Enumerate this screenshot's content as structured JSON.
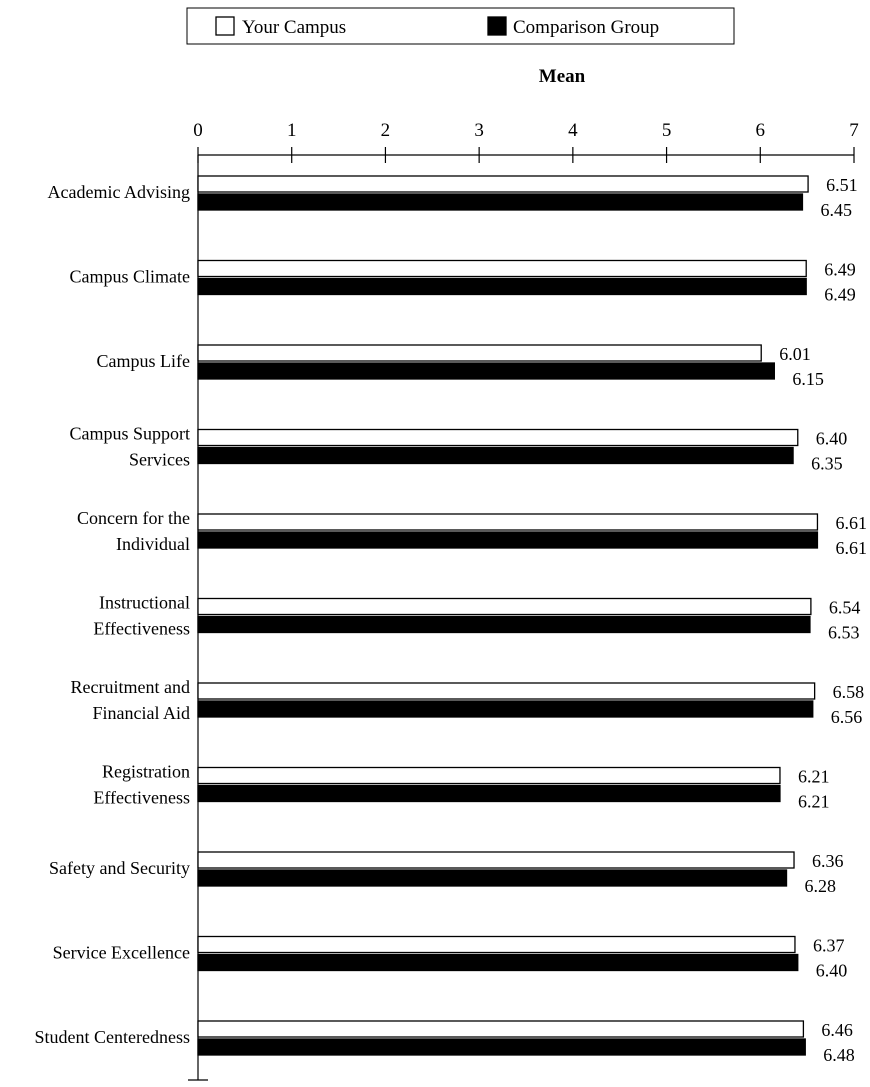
{
  "chart_data": {
    "type": "bar",
    "orientation": "horizontal",
    "title": "",
    "xlabel": "Mean",
    "ylabel": "",
    "xlim": [
      0,
      7
    ],
    "x_ticks": [
      0,
      1,
      2,
      3,
      4,
      5,
      6,
      7
    ],
    "grid": false,
    "legend_placement": "top",
    "categories": [
      [
        "Academic Advising"
      ],
      [
        "Campus Climate"
      ],
      [
        "Campus Life"
      ],
      [
        "Campus Support",
        "Services"
      ],
      [
        "Concern for the",
        "Individual"
      ],
      [
        "Instructional",
        "Effectiveness"
      ],
      [
        "Recruitment and",
        "Financial Aid"
      ],
      [
        "Registration",
        "Effectiveness"
      ],
      [
        "Safety and Security"
      ],
      [
        "Service Excellence"
      ],
      [
        "Student Centeredness"
      ]
    ],
    "series": [
      {
        "name": "Your Campus",
        "color": "#ffffff",
        "values": [
          6.51,
          6.49,
          6.01,
          6.4,
          6.61,
          6.54,
          6.58,
          6.21,
          6.36,
          6.37,
          6.46
        ],
        "labels": [
          "6.51",
          "6.49",
          "6.01",
          "6.40",
          "6.61",
          "6.54",
          "6.58",
          "6.21",
          "6.36",
          "6.37",
          "6.46"
        ]
      },
      {
        "name": "Comparison Group",
        "color": "#000000",
        "values": [
          6.45,
          6.49,
          6.15,
          6.35,
          6.61,
          6.53,
          6.56,
          6.21,
          6.28,
          6.4,
          6.48
        ],
        "labels": [
          "6.45",
          "6.49",
          "6.15",
          "6.35",
          "6.61",
          "6.53",
          "6.56",
          "6.21",
          "6.28",
          "6.40",
          "6.48"
        ]
      }
    ]
  }
}
